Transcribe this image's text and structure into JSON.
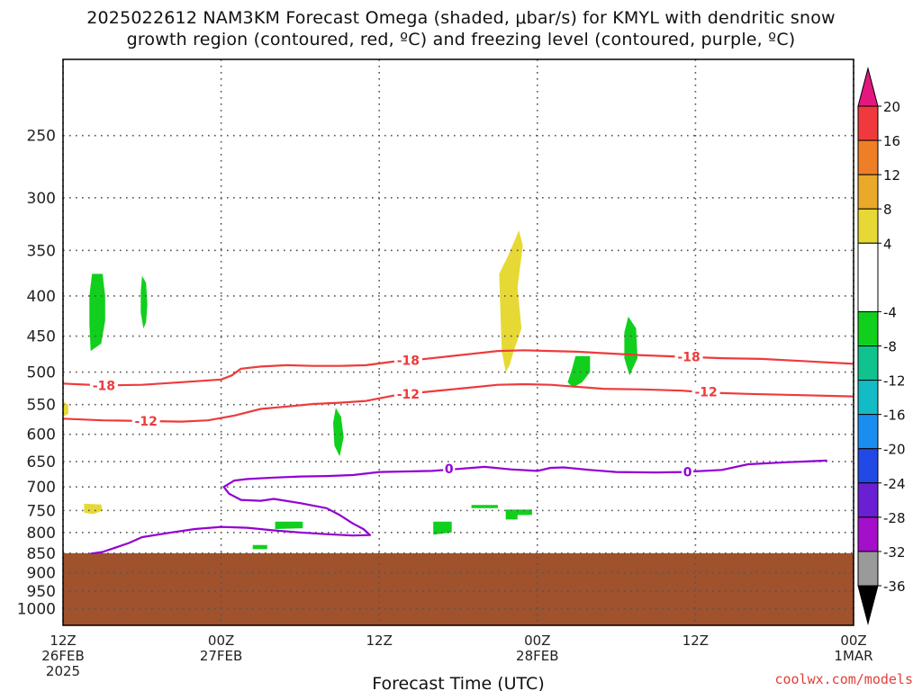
{
  "title_line1": "2025022612 NAM3KM Forecast Omega (shaded, μbar/s) for KMYL with dendritic snow",
  "title_line2": "growth region (contoured, red, ºC) and freezing level (contoured, purple, ºC)",
  "credit": "coolwx.com/models",
  "chart_data": {
    "type": "time-height cross section",
    "xlabel": "Forecast Time (UTC)",
    "x_ticks": [
      {
        "hour": 0,
        "lines": [
          "12Z",
          "26FEB",
          "2025"
        ]
      },
      {
        "hour": 12,
        "lines": [
          "00Z",
          "27FEB"
        ]
      },
      {
        "hour": 24,
        "lines": [
          "12Z"
        ]
      },
      {
        "hour": 36,
        "lines": [
          "00Z",
          "28FEB"
        ]
      },
      {
        "hour": 48,
        "lines": [
          "12Z"
        ]
      },
      {
        "hour": 60,
        "lines": [
          "00Z",
          "1MAR"
        ]
      }
    ],
    "xlim": [
      0,
      60
    ],
    "y_scale": "log",
    "y_ticks": [
      250,
      300,
      350,
      400,
      450,
      500,
      550,
      600,
      650,
      700,
      750,
      800,
      850,
      900,
      950,
      1000
    ],
    "ylim": [
      1050,
      200
    ],
    "colors": {
      "frame": "#000000",
      "grid": "#555555",
      "terrain": "#a0522d",
      "dgz": "#ee3b3b",
      "freezing": "#9400d3"
    },
    "colorbar": {
      "labels": [
        20,
        16,
        12,
        8,
        4,
        -4,
        -8,
        -12,
        -16,
        -20,
        -24,
        -28,
        -32,
        -36
      ],
      "bins": [
        {
          "from": 16,
          "to": 20,
          "color": "#f0393c"
        },
        {
          "from": 12,
          "to": 16,
          "color": "#ef7f27"
        },
        {
          "from": 8,
          "to": 12,
          "color": "#e9a92a"
        },
        {
          "from": 4,
          "to": 8,
          "color": "#e7d935"
        },
        {
          "from": -4,
          "to": 4,
          "color": "#ffffff"
        },
        {
          "from": -8,
          "to": -4,
          "color": "#11cf1d"
        },
        {
          "from": -12,
          "to": -8,
          "color": "#10c28e"
        },
        {
          "from": -16,
          "to": -12,
          "color": "#12bbc6"
        },
        {
          "from": -20,
          "to": -16,
          "color": "#1a8ef0"
        },
        {
          "from": -24,
          "to": -20,
          "color": "#2248e6"
        },
        {
          "from": -28,
          "to": -24,
          "color": "#6a1fd2"
        },
        {
          "from": -32,
          "to": -28,
          "color": "#a40fc9"
        },
        {
          "from": -36,
          "to": -32,
          "color": "#9a9a9a"
        }
      ],
      "top_arrow_color": "#e3177f",
      "bottom_arrow_color": "#000000"
    },
    "terrain_top_hpa": 850,
    "contours": [
      {
        "level": -18,
        "label": "-18",
        "color": "#ee3b3b",
        "points": [
          [
            0,
            517
          ],
          [
            3,
            520
          ],
          [
            6,
            519
          ],
          [
            9,
            515
          ],
          [
            12,
            511
          ],
          [
            12.8,
            505
          ],
          [
            13.5,
            495
          ],
          [
            15,
            492
          ],
          [
            17,
            490
          ],
          [
            19,
            491
          ],
          [
            21,
            491
          ],
          [
            23,
            490
          ],
          [
            25,
            485
          ],
          [
            27,
            482
          ],
          [
            29,
            478
          ],
          [
            31,
            474
          ],
          [
            33,
            470
          ],
          [
            35,
            469
          ],
          [
            37,
            470
          ],
          [
            39,
            471
          ],
          [
            41,
            473
          ],
          [
            44,
            476
          ],
          [
            47,
            478
          ],
          [
            50,
            480
          ],
          [
            53,
            481
          ],
          [
            56,
            484
          ],
          [
            60,
            488
          ]
        ],
        "label_at": [
          [
            3.1,
            520
          ],
          [
            26.2,
            483
          ],
          [
            47.5,
            478
          ]
        ]
      },
      {
        "level": -12,
        "label": "-12",
        "color": "#ee3b3b",
        "points": [
          [
            0,
            573
          ],
          [
            3,
            576
          ],
          [
            6,
            577
          ],
          [
            9,
            578
          ],
          [
            11,
            576
          ],
          [
            13,
            568
          ],
          [
            15,
            557
          ],
          [
            17,
            553
          ],
          [
            19,
            549
          ],
          [
            21,
            547
          ],
          [
            23,
            544
          ],
          [
            25,
            536
          ],
          [
            27,
            531
          ],
          [
            29,
            527
          ],
          [
            31,
            523
          ],
          [
            33,
            519
          ],
          [
            35,
            518
          ],
          [
            37,
            519
          ],
          [
            39,
            522
          ],
          [
            41,
            525
          ],
          [
            44,
            526
          ],
          [
            47,
            528
          ],
          [
            49,
            531
          ],
          [
            52,
            533
          ],
          [
            56,
            535
          ],
          [
            60,
            537
          ]
        ],
        "label_at": [
          [
            6.3,
            577
          ],
          [
            26.2,
            533
          ],
          [
            48.8,
            530
          ]
        ]
      },
      {
        "level": 0,
        "label": "0",
        "color": "#9400d3",
        "points": [
          [
            58,
            648
          ],
          [
            55,
            651
          ],
          [
            52,
            655
          ],
          [
            50,
            666
          ],
          [
            47,
            670
          ],
          [
            45,
            671
          ],
          [
            42,
            670
          ],
          [
            40,
            666
          ],
          [
            38,
            661
          ],
          [
            37,
            662
          ],
          [
            36,
            668
          ],
          [
            34,
            665
          ],
          [
            32,
            660
          ],
          [
            30,
            664
          ],
          [
            28,
            668
          ],
          [
            26,
            669
          ],
          [
            24,
            670
          ],
          [
            22,
            676
          ],
          [
            20,
            678
          ],
          [
            18,
            679
          ],
          [
            16,
            681
          ],
          [
            14,
            684
          ],
          [
            13,
            687
          ],
          [
            12.2,
            700
          ],
          [
            12.6,
            714
          ],
          [
            13.5,
            727
          ],
          [
            15,
            729
          ],
          [
            16,
            725
          ],
          [
            18,
            734
          ],
          [
            20,
            745
          ],
          [
            21,
            760
          ],
          [
            22,
            779
          ],
          [
            22.8,
            792
          ],
          [
            23.3,
            806
          ],
          [
            22,
            807
          ],
          [
            20,
            804
          ],
          [
            18,
            800
          ],
          [
            16,
            795
          ],
          [
            14,
            789
          ],
          [
            12,
            787
          ],
          [
            10,
            792
          ],
          [
            8,
            801
          ],
          [
            6,
            811
          ],
          [
            5,
            825
          ],
          [
            3,
            847
          ],
          [
            2.1,
            851
          ]
        ],
        "label_at": [
          [
            29.3,
            664
          ],
          [
            47.4,
            670
          ]
        ]
      }
    ],
    "omega_patches": [
      {
        "value_range": "-8 to -4",
        "color": "#11cf1d",
        "points": [
          [
            2.2,
            375
          ],
          [
            3,
            375
          ],
          [
            3.2,
            400
          ],
          [
            3.2,
            430
          ],
          [
            2.9,
            460
          ],
          [
            2.1,
            470
          ],
          [
            2.0,
            435
          ],
          [
            2.0,
            400
          ]
        ]
      },
      {
        "value_range": "-8 to -4",
        "color": "#11cf1d",
        "points": [
          [
            6,
            377
          ],
          [
            6.3,
            385
          ],
          [
            6.4,
            410
          ],
          [
            6.3,
            432
          ],
          [
            6.1,
            440
          ],
          [
            5.9,
            420
          ],
          [
            5.9,
            395
          ]
        ]
      },
      {
        "value_range": "-8 to -4",
        "color": "#11cf1d",
        "points": [
          [
            20.7,
            555
          ],
          [
            21.1,
            570
          ],
          [
            21.3,
            605
          ],
          [
            21.0,
            640
          ],
          [
            20.6,
            620
          ],
          [
            20.5,
            580
          ]
        ]
      },
      {
        "value_range": "-8 to -4",
        "color": "#11cf1d",
        "points": [
          [
            42.9,
            425
          ],
          [
            43.5,
            440
          ],
          [
            43.6,
            480
          ],
          [
            43.0,
            505
          ],
          [
            42.6,
            480
          ],
          [
            42.6,
            445
          ]
        ]
      },
      {
        "value_range": "-8 to -4",
        "color": "#11cf1d",
        "points": [
          [
            38.9,
            477
          ],
          [
            40.0,
            477
          ],
          [
            40.0,
            500
          ],
          [
            39.4,
            515
          ],
          [
            38.7,
            523
          ],
          [
            38.3,
            515
          ],
          [
            38.6,
            498
          ]
        ]
      },
      {
        "value_range": "-8 to -4",
        "color": "#11cf1d",
        "points": [
          [
            28.1,
            775
          ],
          [
            29.5,
            775
          ],
          [
            29.5,
            800
          ],
          [
            28.1,
            805
          ]
        ]
      },
      {
        "value_range": "-8 to -4",
        "color": "#11cf1d",
        "points": [
          [
            16.1,
            775
          ],
          [
            18.2,
            775
          ],
          [
            18.2,
            790
          ],
          [
            16.1,
            792
          ]
        ]
      },
      {
        "value_range": "-8 to -4",
        "color": "#11cf1d",
        "points": [
          [
            31.0,
            738
          ],
          [
            33.0,
            738
          ],
          [
            33.0,
            745
          ],
          [
            31.0,
            745
          ]
        ]
      },
      {
        "value_range": "-8 to -4",
        "color": "#11cf1d",
        "points": [
          [
            33.6,
            748
          ],
          [
            35.6,
            748
          ],
          [
            35.6,
            760
          ],
          [
            34.5,
            760
          ],
          [
            34.5,
            770
          ],
          [
            33.6,
            770
          ]
        ]
      },
      {
        "value_range": "-8 to -4",
        "color": "#11cf1d",
        "points": [
          [
            14.4,
            830
          ],
          [
            15.5,
            830
          ],
          [
            15.5,
            840
          ],
          [
            14.4,
            840
          ]
        ]
      },
      {
        "value_range": "4 to 8",
        "color": "#e7d935",
        "points": [
          [
            34.6,
            330
          ],
          [
            34.9,
            345
          ],
          [
            34.5,
            390
          ],
          [
            34.8,
            440
          ],
          [
            34.2,
            470
          ],
          [
            33.9,
            490
          ],
          [
            33.6,
            500
          ],
          [
            33.3,
            470
          ],
          [
            33.2,
            420
          ],
          [
            33.1,
            375
          ],
          [
            33.8,
            355
          ]
        ]
      },
      {
        "value_range": "4 to 8",
        "color": "#e7d935",
        "points": [
          [
            1.6,
            735
          ],
          [
            2.9,
            737
          ],
          [
            3.0,
            750
          ],
          [
            2.3,
            758
          ],
          [
            1.6,
            755
          ]
        ]
      },
      {
        "value_range": "4 to 8",
        "color": "#e7d935",
        "points": [
          [
            0,
            545
          ],
          [
            0.4,
            550
          ],
          [
            0.4,
            565
          ],
          [
            0,
            570
          ]
        ]
      }
    ]
  }
}
